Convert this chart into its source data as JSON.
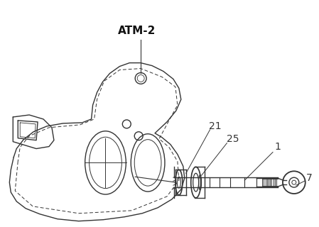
{
  "bg_color": "#ffffff",
  "line_color": "#333333",
  "label_atm2": "ATM-2",
  "label_21": "21",
  "label_25": "25",
  "label_1": "1",
  "label_7": "7",
  "label_fontsize": 10,
  "label_atm2_fontsize": 11,
  "figsize": [
    4.49,
    3.2
  ],
  "dpi": 100
}
